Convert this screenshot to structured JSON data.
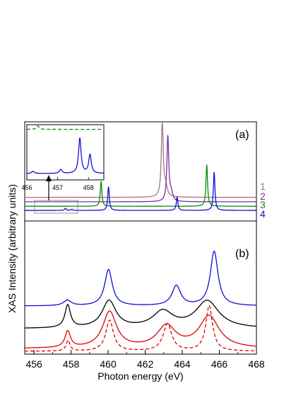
{
  "chart_data": [
    {
      "panel": "(a)",
      "type": "line",
      "xlim": [
        455.5,
        468.0
      ],
      "ylabel": "XAS Intensity (arbitrary units)",
      "series": [
        {
          "name": "1",
          "color": "#a0787a",
          "baseline": 0.7,
          "peaks": [
            {
              "x": 462.92,
              "h": 2.6,
              "w": 0.06
            },
            {
              "x": 463.1,
              "h": 0.35,
              "w": 0.1
            }
          ]
        },
        {
          "name": "2",
          "color": "#7b2fa0",
          "baseline": 0.55,
          "peaks": [
            {
              "x": 463.22,
              "h": 2.2,
              "w": 0.06
            },
            {
              "x": 463.4,
              "h": 0.28,
              "w": 0.1
            }
          ]
        },
        {
          "name": "3",
          "color": "#0a8a0a",
          "baseline": 0.4,
          "peaks": [
            {
              "x": 459.62,
              "h": 0.85,
              "w": 0.05
            },
            {
              "x": 465.32,
              "h": 1.4,
              "w": 0.05
            }
          ]
        },
        {
          "name": "4",
          "color": "#1010d0",
          "baseline": 0.26,
          "peaks": [
            {
              "x": 457.7,
              "h": 0.07,
              "w": 0.05
            },
            {
              "x": 458.05,
              "h": 0.04,
              "w": 0.05
            },
            {
              "x": 460.02,
              "h": 0.8,
              "w": 0.05
            },
            {
              "x": 463.72,
              "h": 0.45,
              "w": 0.05
            },
            {
              "x": 465.72,
              "h": 1.3,
              "w": 0.05
            }
          ]
        }
      ],
      "inset": {
        "xlim": [
          456.0,
          458.5
        ],
        "tick_labels": [
          "456",
          "457",
          "458"
        ],
        "series": [
          {
            "color": "#0a8a0a",
            "dashed": true,
            "baseline": 0.88,
            "peaks": [
              {
                "x": 456.35,
                "h": 0.08,
                "w": 0.04
              }
            ]
          },
          {
            "color": "#1010d0",
            "dashed": false,
            "baseline": 0.1,
            "peaks": [
              {
                "x": 456.2,
                "h": 0.04,
                "w": 0.05
              },
              {
                "x": 457.1,
                "h": 0.07,
                "w": 0.05
              },
              {
                "x": 457.72,
                "h": 0.62,
                "w": 0.05
              },
              {
                "x": 458.05,
                "h": 0.33,
                "w": 0.05
              }
            ]
          }
        ]
      }
    },
    {
      "panel": "(b)",
      "type": "line",
      "xlim": [
        455.5,
        468.0
      ],
      "xlabel": "Photon energy (eV)",
      "xticks": [
        "456",
        "458",
        "460",
        "462",
        "464",
        "466",
        "468"
      ],
      "series": [
        {
          "color": "#1010d0",
          "dashed": false,
          "baseline": 0.5,
          "peaks": [
            {
              "x": 457.8,
              "h": 0.06,
              "w": 0.25
            },
            {
              "x": 460.02,
              "h": 0.4,
              "w": 0.25
            },
            {
              "x": 463.68,
              "h": 0.22,
              "w": 0.28
            },
            {
              "x": 465.72,
              "h": 0.6,
              "w": 0.25
            }
          ]
        },
        {
          "color": "#000000",
          "dashed": false,
          "baseline": 0.25,
          "peaks": [
            {
              "x": 457.82,
              "h": 0.25,
              "w": 0.18
            },
            {
              "x": 460.05,
              "h": 0.3,
              "w": 0.45
            },
            {
              "x": 462.95,
              "h": 0.18,
              "w": 0.65
            },
            {
              "x": 465.35,
              "h": 0.3,
              "w": 0.75
            }
          ]
        },
        {
          "color": "#e00000",
          "dashed": false,
          "baseline": 0.03,
          "peaks": [
            {
              "x": 457.82,
              "h": 0.18,
              "w": 0.18
            },
            {
              "x": 460.08,
              "h": 0.4,
              "w": 0.45
            },
            {
              "x": 463.15,
              "h": 0.24,
              "w": 0.6
            },
            {
              "x": 465.45,
              "h": 0.35,
              "w": 0.65
            }
          ]
        },
        {
          "color": "#e00000",
          "dashed": true,
          "baseline": 0.0,
          "peaks": [
            {
              "x": 457.84,
              "h": 0.12,
              "w": 0.12
            },
            {
              "x": 460.08,
              "h": 0.34,
              "w": 0.25
            },
            {
              "x": 463.2,
              "h": 0.3,
              "w": 0.28
            },
            {
              "x": 465.45,
              "h": 0.5,
              "w": 0.22
            }
          ]
        }
      ]
    }
  ]
}
